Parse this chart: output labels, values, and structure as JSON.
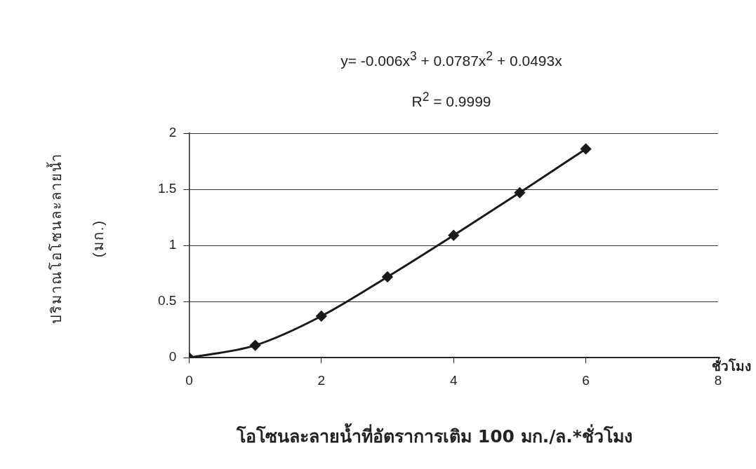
{
  "chart_data": {
    "type": "line",
    "title": "โอโซนละลายน้ำที่อัตราการเติม 100 มก./ล.*ชั่วโมง",
    "xlabel": "ชั่วโมง",
    "ylabel": "ปริมาณโอโซนละลายน้ำ (มก.)",
    "annotations": [
      "y= -0.006x$^{3}$ + 0.0787x$^{2}$ + 0.0493x",
      "R$^{2}$ = 0.9999"
    ],
    "x": [
      0,
      1,
      2,
      3,
      4,
      5,
      6
    ],
    "series": [
      {
        "color": "#1a1a1a",
        "values": [
          0,
          0.11,
          0.37,
          0.72,
          1.09,
          1.47,
          1.86
        ]
      }
    ],
    "xlim": [
      0,
      8
    ],
    "xticks": [
      0,
      2,
      4,
      6,
      8
    ],
    "ylim": [
      0,
      2
    ],
    "yticks": [
      0,
      0.5,
      1,
      1.5,
      2
    ],
    "grid": "y",
    "legend": false,
    "marker": "diamond",
    "line_style": "solid"
  }
}
